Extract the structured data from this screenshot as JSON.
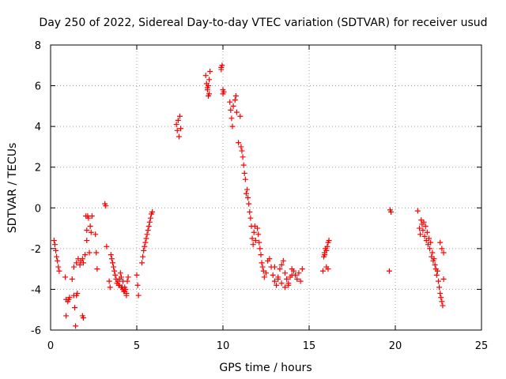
{
  "chart_data": {
    "type": "scatter",
    "title": "Day 250 of 2022, Sidereal Day-to-day VTEC variation (SDTVAR) for receiver usud",
    "xlabel": "GPS time / hours",
    "ylabel": "SDTVAR / TECUs",
    "xlim": [
      0,
      25
    ],
    "ylim": [
      -6,
      8
    ],
    "xticks": [
      0,
      5,
      10,
      15,
      20,
      25
    ],
    "yticks": [
      -6,
      -4,
      -2,
      0,
      2,
      4,
      6,
      8
    ],
    "grid": true,
    "marker": "+",
    "color": "#ff0000",
    "series": [
      {
        "name": "SDTVAR",
        "x": [
          0.2,
          0.25,
          0.3,
          0.35,
          0.4,
          0.45,
          0.5,
          0.85,
          0.9,
          0.9,
          1.0,
          1.05,
          1.1,
          1.25,
          1.35,
          1.4,
          1.45,
          1.5,
          1.55,
          1.35,
          1.5,
          1.6,
          1.85,
          1.9,
          1.7,
          1.75,
          1.85,
          1.9,
          2.0,
          2.05,
          2.1,
          2.1,
          2.15,
          2.2,
          2.25,
          2.3,
          2.35,
          2.4,
          2.6,
          2.65,
          2.7,
          3.15,
          3.2,
          3.25,
          3.4,
          3.45,
          3.5,
          3.55,
          3.6,
          3.65,
          3.7,
          3.75,
          3.8,
          3.85,
          3.9,
          3.95,
          4.0,
          4.05,
          4.1,
          4.15,
          4.2,
          4.25,
          4.3,
          4.35,
          4.4,
          4.45,
          4.5,
          4.0,
          4.1,
          4.2,
          4.3,
          4.4,
          5.0,
          5.05,
          5.1,
          5.3,
          5.35,
          5.4,
          5.45,
          5.5,
          5.55,
          5.6,
          5.65,
          5.7,
          5.75,
          5.8,
          5.85,
          5.9,
          7.3,
          7.35,
          7.4,
          7.45,
          7.5,
          7.55,
          9.0,
          9.05,
          9.1,
          9.15,
          9.2,
          9.25,
          9.1,
          9.15,
          9.2,
          9.9,
          9.95,
          10.0,
          10.05,
          9.9,
          10.0,
          10.4,
          10.45,
          10.5,
          10.55,
          10.6,
          10.7,
          10.75,
          10.8,
          10.9,
          11.0,
          11.05,
          11.1,
          11.15,
          11.2,
          11.25,
          11.3,
          11.35,
          11.4,
          11.45,
          11.5,
          11.55,
          11.6,
          11.65,
          11.7,
          11.75,
          11.8,
          11.85,
          11.9,
          12.0,
          12.05,
          12.1,
          12.15,
          12.2,
          12.25,
          12.3,
          12.35,
          12.4,
          12.5,
          12.6,
          12.7,
          12.8,
          12.9,
          13.0,
          13.1,
          13.2,
          13.3,
          13.4,
          13.5,
          13.6,
          13.7,
          13.8,
          13.9,
          14.0,
          14.1,
          14.2,
          14.3,
          14.4,
          14.5,
          14.6,
          13.0,
          13.2,
          13.4,
          13.6,
          13.8,
          14.0,
          15.8,
          15.85,
          15.9,
          15.95,
          16.0,
          16.05,
          16.1,
          16.15,
          15.9,
          16.0,
          16.1,
          19.65,
          19.7,
          19.75,
          21.3,
          21.4,
          21.45,
          21.5,
          21.55,
          21.6,
          21.65,
          21.7,
          21.75,
          21.8,
          21.85,
          21.9,
          21.95,
          22.0,
          22.05,
          22.1,
          22.15,
          22.2,
          22.25,
          22.3,
          22.35,
          22.4,
          22.45,
          22.5,
          22.55,
          22.6,
          22.65,
          22.7,
          22.75,
          22.8,
          22.8,
          22.7,
          22.6
        ],
        "y": [
          -1.6,
          -1.8,
          -2.1,
          -2.4,
          -2.6,
          -2.9,
          -3.1,
          -3.4,
          -4.5,
          -5.3,
          -4.6,
          -4.5,
          -4.4,
          -3.5,
          -4.3,
          -4.9,
          -5.8,
          -4.3,
          -4.2,
          -2.9,
          -2.7,
          -2.5,
          -5.3,
          -5.4,
          -2.8,
          -2.6,
          -2.5,
          -2.7,
          -2.3,
          -0.4,
          -1.1,
          -1.6,
          -0.4,
          -0.5,
          -2.2,
          -0.9,
          -1.2,
          -0.4,
          -1.3,
          -2.2,
          -3.0,
          0.2,
          0.1,
          -1.9,
          -3.6,
          -3.9,
          -2.3,
          -2.5,
          -2.7,
          -2.9,
          -3.1,
          -3.3,
          -3.5,
          -3.7,
          -3.6,
          -3.8,
          -3.5,
          -3.2,
          -3.4,
          -3.9,
          -3.6,
          -4.1,
          -3.9,
          -4.0,
          -4.3,
          -3.6,
          -3.4,
          -3.8,
          -3.9,
          -4.0,
          -4.1,
          -4.2,
          -3.3,
          -3.8,
          -4.3,
          -2.7,
          -2.4,
          -2.1,
          -1.9,
          -1.7,
          -1.5,
          -1.3,
          -1.1,
          -0.9,
          -0.7,
          -0.5,
          -0.3,
          -0.2,
          4.1,
          3.8,
          4.3,
          3.5,
          4.5,
          3.9,
          6.5,
          6.1,
          5.8,
          5.5,
          6.3,
          6.7,
          5.9,
          6.0,
          5.6,
          6.9,
          7.0,
          5.8,
          5.7,
          6.8,
          5.6,
          5.2,
          4.8,
          4.4,
          4.0,
          5.0,
          5.3,
          5.5,
          4.7,
          3.2,
          4.5,
          3.0,
          2.8,
          2.5,
          2.1,
          1.7,
          1.4,
          0.7,
          0.9,
          0.5,
          0.2,
          -0.2,
          -0.5,
          -0.9,
          -1.5,
          -1.8,
          -1.2,
          -0.9,
          -1.6,
          -1.0,
          -1.3,
          -1.7,
          -2.0,
          -2.3,
          -2.7,
          -2.9,
          -3.1,
          -3.4,
          -3.2,
          -2.6,
          -2.5,
          -2.9,
          -3.3,
          -3.6,
          -3.8,
          -3.5,
          -3.0,
          -2.8,
          -2.6,
          -3.2,
          -3.5,
          -3.7,
          -3.4,
          -3.0,
          -3.1,
          -3.3,
          -3.5,
          -3.2,
          -3.6,
          -3.0,
          -2.9,
          -3.4,
          -3.7,
          -3.9,
          -3.8,
          -3.3,
          -3.1,
          -2.4,
          -2.2,
          -2.0,
          -2.1,
          -1.9,
          -1.7,
          -1.6,
          -2.3,
          -2.9,
          -3.0,
          -3.1,
          -0.1,
          -0.2,
          -0.15,
          -1.0,
          -1.3,
          -0.6,
          -0.8,
          -1.1,
          -0.7,
          -1.4,
          -0.9,
          -1.6,
          -1.2,
          -1.8,
          -1.5,
          -2.0,
          -1.7,
          -2.4,
          -2.2,
          -2.6,
          -2.5,
          -2.8,
          -3.0,
          -3.3,
          -3.1,
          -3.6,
          -3.9,
          -4.2,
          -4.4,
          -4.6,
          -4.8,
          -3.5,
          -2.2,
          -2.0,
          -1.7
        ]
      }
    ]
  }
}
